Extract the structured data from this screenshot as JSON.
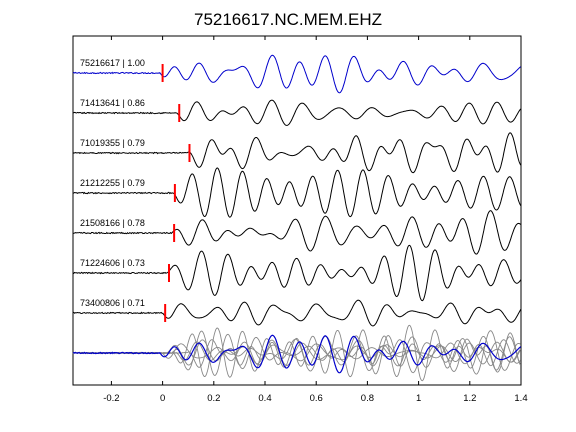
{
  "chart_data": {
    "type": "line",
    "title": "75216617.NC.MEM.EHZ",
    "xlabel": "",
    "ylabel": "",
    "xlim": [
      -0.35,
      1.4
    ],
    "xticks": [
      -0.2,
      0,
      0.2,
      0.4,
      0.6,
      0.8,
      1,
      1.2,
      1.4
    ],
    "xtick_labels": [
      "-0.2",
      "0",
      "0.2",
      "0.4",
      "0.6",
      "0.8",
      "1",
      "1.2",
      "1.4"
    ],
    "grid": false,
    "legend": "none",
    "colors": {
      "reference": "#0000cc",
      "trace": "#000000",
      "pick": "#ff0000",
      "stack": "#888888"
    },
    "series": [
      {
        "label": "75216617 | 1.00",
        "id": "75216617",
        "correlation": 1.0,
        "pick_time": 0.0,
        "color": "reference"
      },
      {
        "label": "71413641 | 0.86",
        "id": "71413641",
        "correlation": 0.86,
        "pick_time": 0.065,
        "color": "trace"
      },
      {
        "label": "71019355 | 0.79",
        "id": "71019355",
        "correlation": 0.79,
        "pick_time": 0.105,
        "color": "trace"
      },
      {
        "label": "21212255 | 0.79",
        "id": "21212255",
        "correlation": 0.79,
        "pick_time": 0.048,
        "color": "trace"
      },
      {
        "label": "21508166 | 0.78",
        "id": "21508166",
        "correlation": 0.78,
        "pick_time": 0.045,
        "color": "trace"
      },
      {
        "label": "71224606 | 0.73",
        "id": "71224606",
        "correlation": 0.73,
        "pick_time": 0.025,
        "color": "trace"
      },
      {
        "label": "73400806 | 0.71",
        "id": "73400806",
        "correlation": 0.71,
        "pick_time": 0.01,
        "color": "trace"
      }
    ],
    "stack": {
      "description_hidden": true
    }
  }
}
